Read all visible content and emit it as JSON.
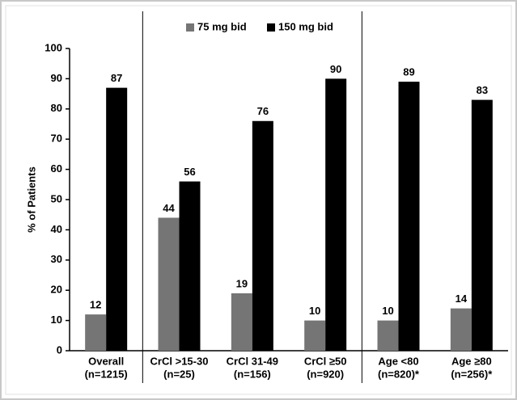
{
  "chart_data": {
    "type": "bar",
    "categories": [
      [
        "Overall",
        "(n=1215)"
      ],
      [
        "CrCl >15-30",
        "(n=25)"
      ],
      [
        "CrCl 31-49",
        "(n=156)"
      ],
      [
        "CrCl ≥50",
        "(n=920)"
      ],
      [
        "Age <80",
        "(n=820)*"
      ],
      [
        "Age ≥80",
        "(n=256)*"
      ]
    ],
    "series": [
      {
        "name": "75 mg bid",
        "color": "#757575",
        "values": [
          12,
          44,
          19,
          10,
          10,
          14
        ]
      },
      {
        "name": "150 mg bid",
        "color": "#000000",
        "values": [
          87,
          56,
          76,
          90,
          89,
          83
        ]
      }
    ],
    "y_label": "% of Patients",
    "ylim": [
      0,
      100
    ],
    "yticks": [
      0,
      10,
      20,
      30,
      40,
      50,
      60,
      70,
      80,
      90,
      100
    ]
  }
}
